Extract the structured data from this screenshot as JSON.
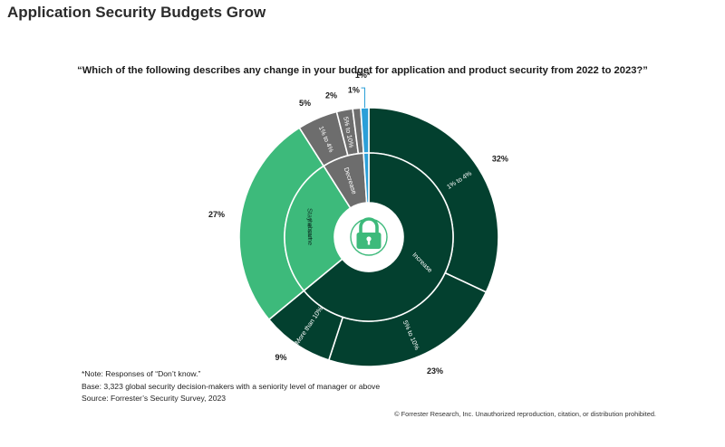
{
  "header": {
    "title": "Application Security Budgets Grow",
    "question": "“Which of the following describes any change in your budget for application and product security from 2022 to 2023?”"
  },
  "chart_data": {
    "type": "sunburst",
    "inner_ring": [
      {
        "label": "Increase",
        "value": 64,
        "color": "#03402f"
      },
      {
        "label": "Stay about the same",
        "value": 27,
        "color": "#3dba7b"
      },
      {
        "label": "Decrease",
        "value": 8,
        "color": "#6d6d6d"
      },
      {
        "label": "",
        "value": 1,
        "color": "#2b9fd8"
      }
    ],
    "outer_ring": [
      {
        "label": "1% to 4%",
        "value": 32,
        "value_label": "32%",
        "group": "Increase",
        "color": "#03402f"
      },
      {
        "label": "5% to 10%",
        "value": 23,
        "value_label": "23%",
        "group": "Increase",
        "color": "#03402f"
      },
      {
        "label": "More than 10%",
        "value": 9,
        "value_label": "9%",
        "group": "Increase",
        "color": "#03402f"
      },
      {
        "label": "",
        "value": 27,
        "value_label": "27%",
        "group": "Stay about the same",
        "color": "#3dba7b"
      },
      {
        "label": "1% to 4%",
        "value": 5,
        "value_label": "5%",
        "group": "Decrease",
        "color": "#6d6d6d"
      },
      {
        "label": "5% to 10%",
        "value": 2,
        "value_label": "2%",
        "group": "Decrease",
        "color": "#6d6d6d"
      },
      {
        "label": "",
        "value": 1,
        "value_label": "1%",
        "group": "Decrease",
        "color": "#6d6d6d"
      },
      {
        "label": "",
        "value": 1,
        "value_label": "1%*",
        "group": "",
        "color": "#2b9fd8"
      }
    ],
    "center_icon": "lock-icon"
  },
  "footer": {
    "note": "*Note: Responses of “Don’t know.”",
    "base": "Base: 3,323 global security decision-makers with a seniority level of manager or above",
    "source": "Source: Forrester’s Security Survey, 2023",
    "copyright": "© Forrester Research, Inc. Unauthorized reproduction, citation, or distribution prohibited."
  }
}
